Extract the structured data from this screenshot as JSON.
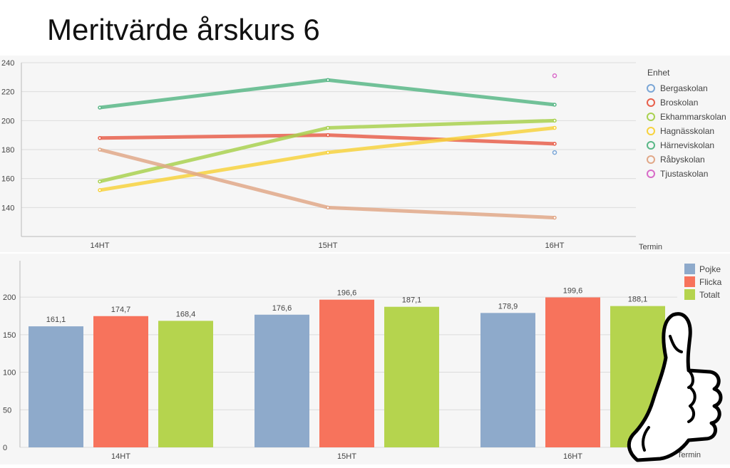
{
  "title": "Meritvärde årskurs 6",
  "chart_data": [
    {
      "type": "line",
      "categories": [
        "14HT",
        "15HT",
        "16HT"
      ],
      "xlabel": "Termin",
      "ylim": [
        120,
        240
      ],
      "yticks": [
        140,
        160,
        180,
        200,
        220,
        240
      ],
      "legend_title": "Enhet",
      "legend_position": "right",
      "grid": true,
      "series": [
        {
          "name": "Bergaskolan",
          "color": "#7aa6d6",
          "marker": "circle",
          "values": [
            null,
            null,
            178
          ]
        },
        {
          "name": "Broskolan",
          "color": "#e8604c",
          "marker": "diamond",
          "values": [
            188,
            190,
            184
          ]
        },
        {
          "name": "Ekhammarskolan",
          "color": "#a9d150",
          "marker": "square",
          "values": [
            158,
            195,
            200
          ]
        },
        {
          "name": "Hagnässkolan",
          "color": "#f7d23e",
          "marker": "square",
          "values": [
            152,
            178,
            195
          ]
        },
        {
          "name": "Härneviskolan",
          "color": "#59b787",
          "marker": "triangle",
          "values": [
            209,
            228,
            211
          ]
        },
        {
          "name": "Råbyskolan",
          "color": "#e1a888",
          "marker": "star",
          "values": [
            180,
            140,
            133
          ]
        },
        {
          "name": "Tjustaskolan",
          "color": "#d86bc8",
          "marker": "triangle-down",
          "values": [
            null,
            null,
            231
          ]
        }
      ]
    },
    {
      "type": "bar",
      "categories": [
        "14HT",
        "15HT",
        "16HT"
      ],
      "xlabel": "Termin",
      "ylim": [
        0,
        220
      ],
      "yticks": [
        0,
        50,
        100,
        150,
        200
      ],
      "legend_position": "top-right",
      "grid": true,
      "series": [
        {
          "name": "Pojke",
          "color": "#8eaacb",
          "values": [
            161.1,
            176.6,
            178.9
          ],
          "labels": [
            "161,1",
            "176,6",
            "178,9"
          ]
        },
        {
          "name": "Flicka",
          "color": "#f7735c",
          "values": [
            174.7,
            196.6,
            199.6
          ],
          "labels": [
            "174,7",
            "196,6",
            "199,6"
          ]
        },
        {
          "name": "Totalt",
          "color": "#b5d44e",
          "values": [
            168.4,
            187.1,
            188.1
          ],
          "labels": [
            "168,4",
            "187,1",
            "188,1"
          ]
        }
      ]
    }
  ],
  "icons": {
    "decoration": "thumbs-up-icon"
  }
}
